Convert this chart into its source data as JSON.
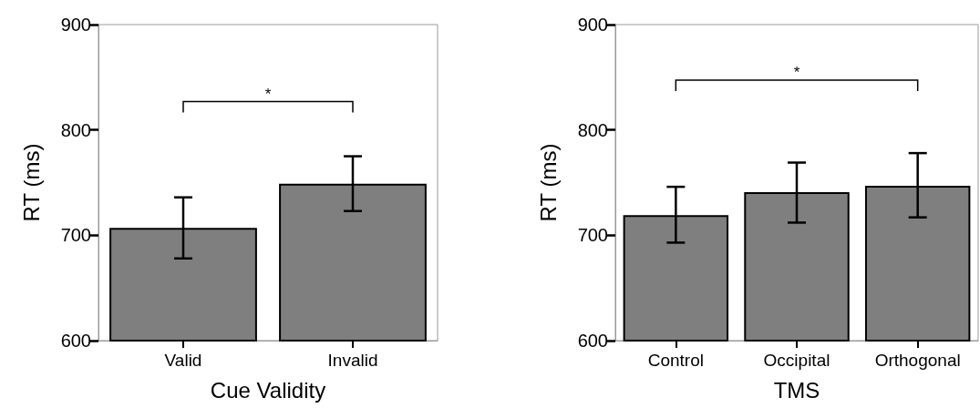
{
  "chart_data": [
    {
      "type": "bar",
      "xlabel": "Cue Validity",
      "ylabel": "RT (ms)",
      "categories": [
        "Valid",
        "Invalid"
      ],
      "values": [
        707,
        749
      ],
      "errors": [
        [
          678,
          736
        ],
        [
          723,
          775
        ]
      ],
      "color": "#7f7f7f",
      "ylim": [
        600,
        900
      ],
      "yticks": [
        600,
        700,
        800,
        900
      ],
      "annotations": [
        "*"
      ]
    },
    {
      "type": "bar",
      "xlabel": "TMS",
      "ylabel": "RT (ms)",
      "categories": [
        "Control",
        "Occipital",
        "Orthogonal"
      ],
      "values": [
        719,
        741,
        747
      ],
      "errors": [
        [
          693,
          746
        ],
        [
          712,
          769
        ],
        [
          717,
          778
        ]
      ],
      "color": "#7f7f7f",
      "ylim": [
        600,
        900
      ],
      "yticks": [
        600,
        700,
        800,
        900
      ],
      "annotations": [
        "*"
      ]
    }
  ]
}
